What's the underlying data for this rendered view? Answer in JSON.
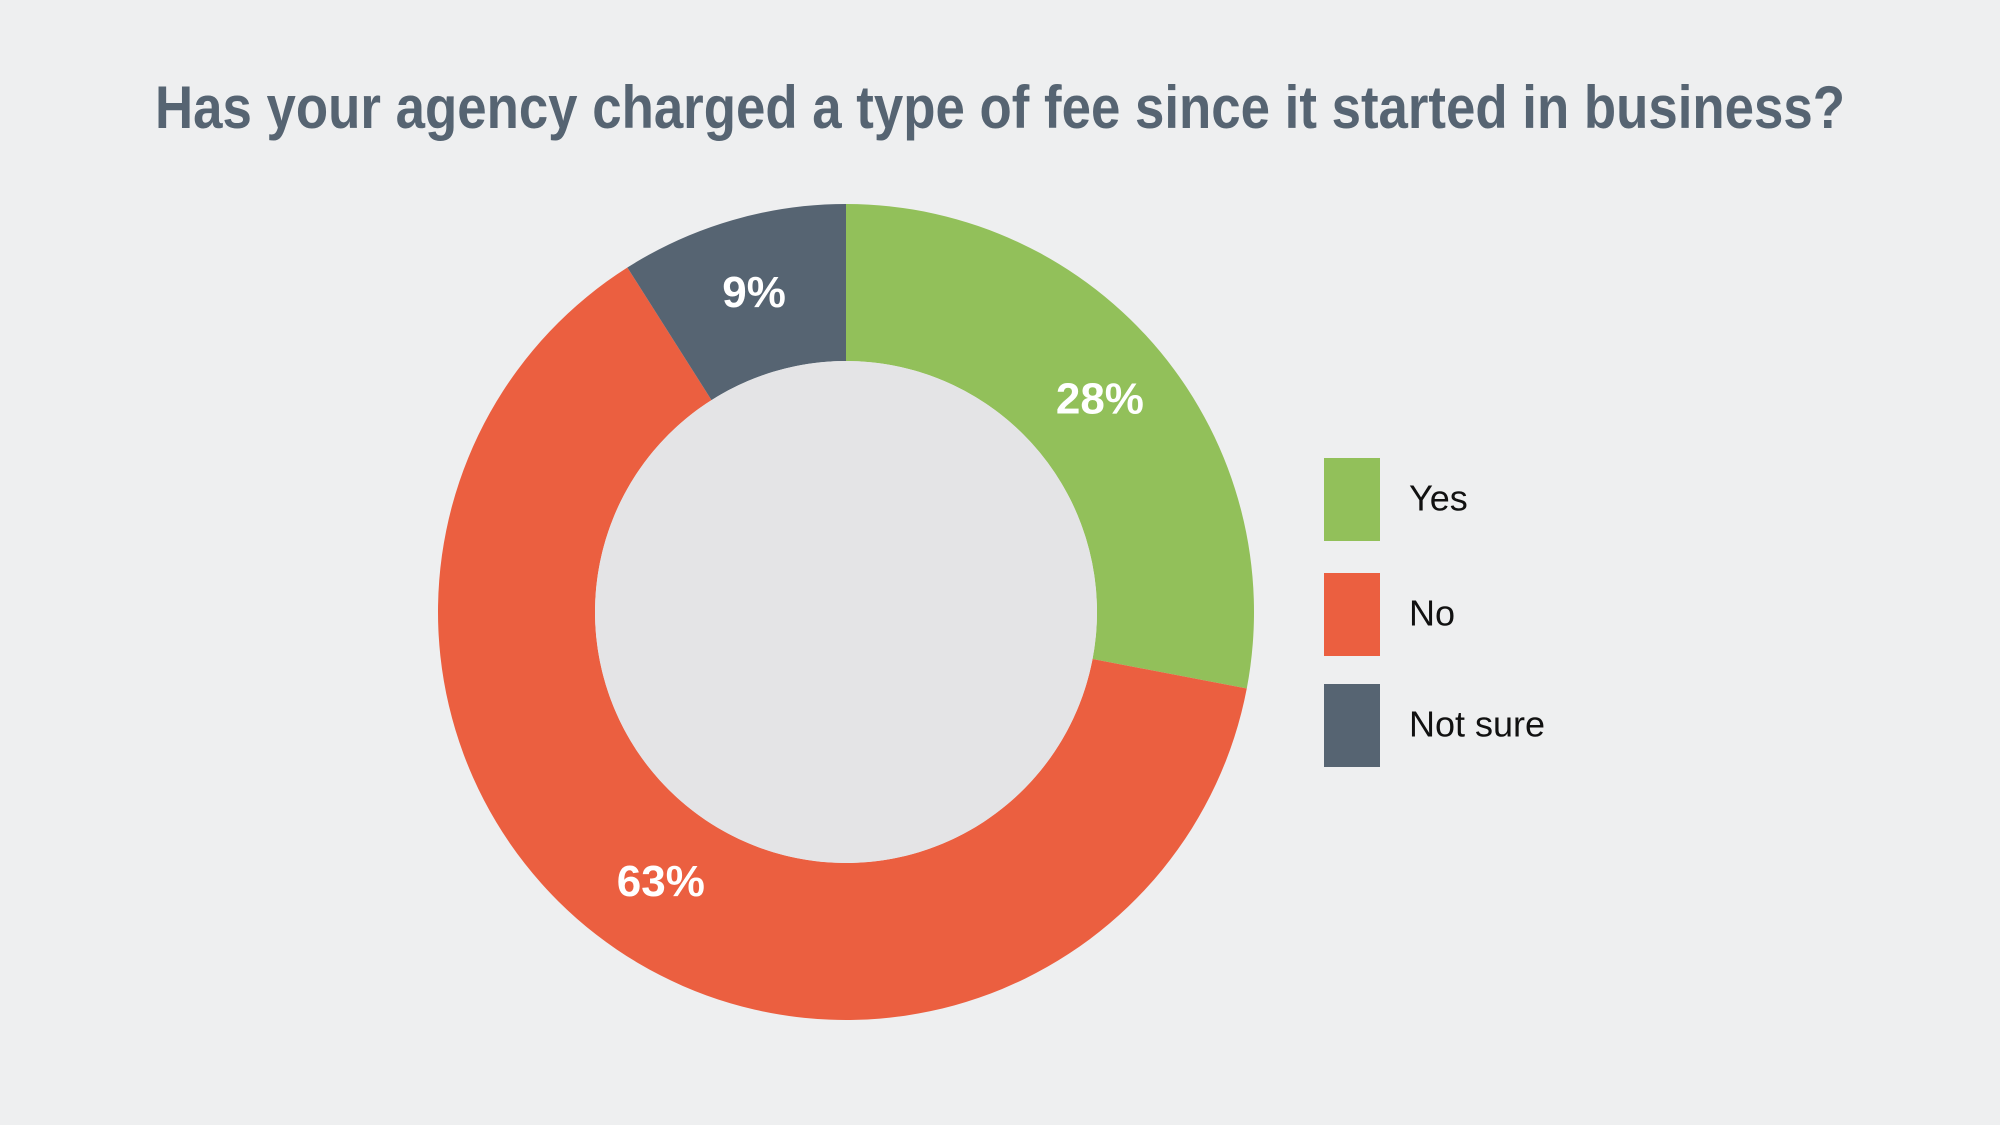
{
  "chart_data": {
    "type": "donut",
    "title": "Has your agency charged a type of fee since it started in business?",
    "categories": [
      "Yes",
      "No",
      "Not sure"
    ],
    "values": [
      28,
      63,
      9
    ],
    "value_labels": [
      "28%",
      "63%",
      "9%"
    ],
    "colors": [
      "#92c05a",
      "#eb5f40",
      "#566472"
    ],
    "legend": "right"
  }
}
